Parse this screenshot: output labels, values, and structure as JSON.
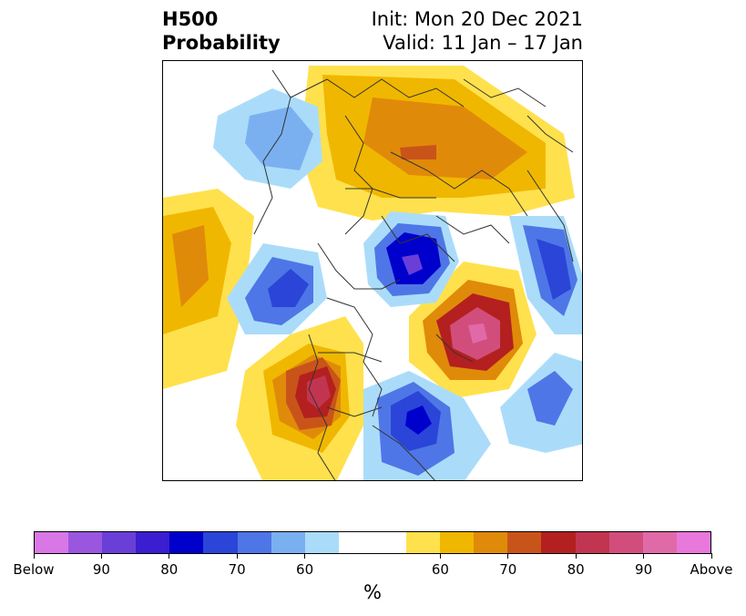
{
  "title": {
    "left_line1": "H500",
    "left_line2": "Probability",
    "right_line1": "Init: Mon 20 Dec 2021",
    "right_line2": "Valid: 11 Jan – 17 Jan"
  },
  "colorbar": {
    "unit": "%",
    "swatches": [
      "#d977e6",
      "#9b56e0",
      "#6a3fd8",
      "#3a1ed0",
      "#0000cc",
      "#2a45d8",
      "#4f76e6",
      "#7bb0f0",
      "#aadcfa",
      "#ffffff",
      "#ffffff",
      "#ffe14d",
      "#f0b700",
      "#e08a0a",
      "#c9541a",
      "#b3201f",
      "#c23550",
      "#d14e7c",
      "#e06aa8",
      "#e878dc"
    ],
    "tick_labels": [
      "Below",
      "90",
      "80",
      "70",
      "60",
      "60",
      "70",
      "80",
      "90",
      "Above"
    ]
  }
}
